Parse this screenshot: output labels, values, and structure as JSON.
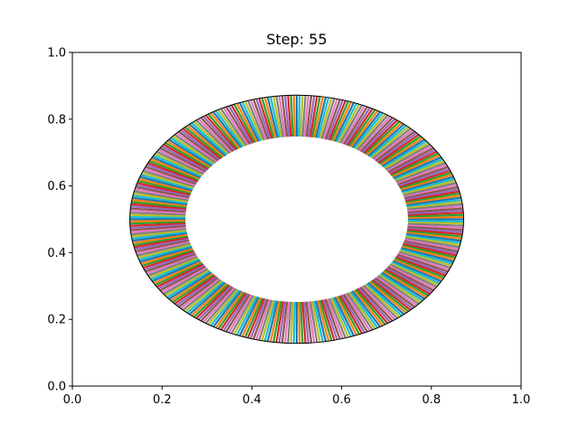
{
  "chart_data": {
    "type": "ring",
    "title": "Step: 55",
    "xlabel": "",
    "ylabel": "",
    "xlim": [
      0,
      1
    ],
    "ylim": [
      0,
      1
    ],
    "xticks": [
      "0.0",
      "0.2",
      "0.4",
      "0.6",
      "0.8",
      "1.0"
    ],
    "yticks": [
      "0.0",
      "0.2",
      "0.4",
      "0.6",
      "0.8",
      "1.0"
    ],
    "grid": false,
    "legend": "none",
    "ring": {
      "center": [
        0.5,
        0.5
      ],
      "outer_radius": 0.372,
      "inner_radius": 0.248,
      "line_count": 360,
      "edge_color": "#000000",
      "palette": [
        "#1f77b4",
        "#ff7f0e",
        "#2ca02c",
        "#d62728",
        "#9467bd",
        "#8c564b",
        "#e377c2",
        "#7f7f7f",
        "#bcbd22",
        "#17becf"
      ]
    }
  }
}
